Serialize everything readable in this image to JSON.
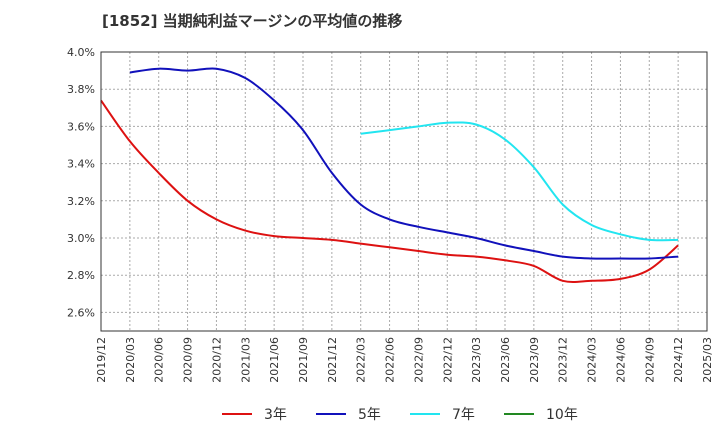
{
  "chart_data": {
    "type": "line",
    "title": "[1852]  当期純利益マージンの平均値の推移",
    "xlabel": "",
    "ylabel": "",
    "ylim": [
      2.5,
      4.0
    ],
    "y_ticks": [
      "2.6%",
      "2.8%",
      "3.0%",
      "3.2%",
      "3.4%",
      "3.6%",
      "3.8%",
      "4.0%"
    ],
    "y_tick_values": [
      2.6,
      2.8,
      3.0,
      3.2,
      3.4,
      3.6,
      3.8,
      4.0
    ],
    "x_ticks": [
      "2019/12",
      "2020/03",
      "2020/06",
      "2020/09",
      "2020/12",
      "2021/03",
      "2021/06",
      "2021/09",
      "2021/12",
      "2022/03",
      "2022/06",
      "2022/09",
      "2022/12",
      "2023/03",
      "2023/06",
      "2023/09",
      "2023/12",
      "2024/03",
      "2024/06",
      "2024/09",
      "2024/12",
      "2025/03"
    ],
    "grid": true,
    "legend_position": "bottom",
    "series": [
      {
        "name": "3年",
        "color": "#dd1111",
        "x": [
          "2019/12",
          "2020/03",
          "2020/06",
          "2020/09",
          "2020/12",
          "2021/03",
          "2021/06",
          "2021/09",
          "2021/12",
          "2022/03",
          "2022/06",
          "2022/09",
          "2022/12",
          "2023/03",
          "2023/06",
          "2023/09",
          "2023/12",
          "2024/03",
          "2024/06",
          "2024/09",
          "2024/12"
        ],
        "values": [
          3.74,
          3.52,
          3.35,
          3.2,
          3.1,
          3.04,
          3.01,
          3.0,
          2.99,
          2.97,
          2.95,
          2.93,
          2.91,
          2.9,
          2.88,
          2.85,
          2.77,
          2.77,
          2.78,
          2.83,
          2.96
        ]
      },
      {
        "name": "5年",
        "color": "#1111bb",
        "x": [
          "2020/03",
          "2020/06",
          "2020/09",
          "2020/12",
          "2021/03",
          "2021/06",
          "2021/09",
          "2021/12",
          "2022/03",
          "2022/06",
          "2022/09",
          "2022/12",
          "2023/03",
          "2023/06",
          "2023/09",
          "2023/12",
          "2024/03",
          "2024/06",
          "2024/09",
          "2024/12"
        ],
        "values": [
          3.89,
          3.91,
          3.9,
          3.91,
          3.86,
          3.74,
          3.58,
          3.35,
          3.18,
          3.1,
          3.06,
          3.03,
          3.0,
          2.96,
          2.93,
          2.9,
          2.89,
          2.89,
          2.89,
          2.9
        ]
      },
      {
        "name": "7年",
        "color": "#22e5f0",
        "x": [
          "2022/03",
          "2022/06",
          "2022/09",
          "2022/12",
          "2023/03",
          "2023/06",
          "2023/09",
          "2023/12",
          "2024/03",
          "2024/06",
          "2024/09",
          "2024/12"
        ],
        "values": [
          3.56,
          3.58,
          3.6,
          3.62,
          3.61,
          3.53,
          3.38,
          3.18,
          3.07,
          3.02,
          2.99,
          2.99
        ]
      },
      {
        "name": "10年",
        "color": "#228822",
        "x": [],
        "values": []
      }
    ]
  }
}
